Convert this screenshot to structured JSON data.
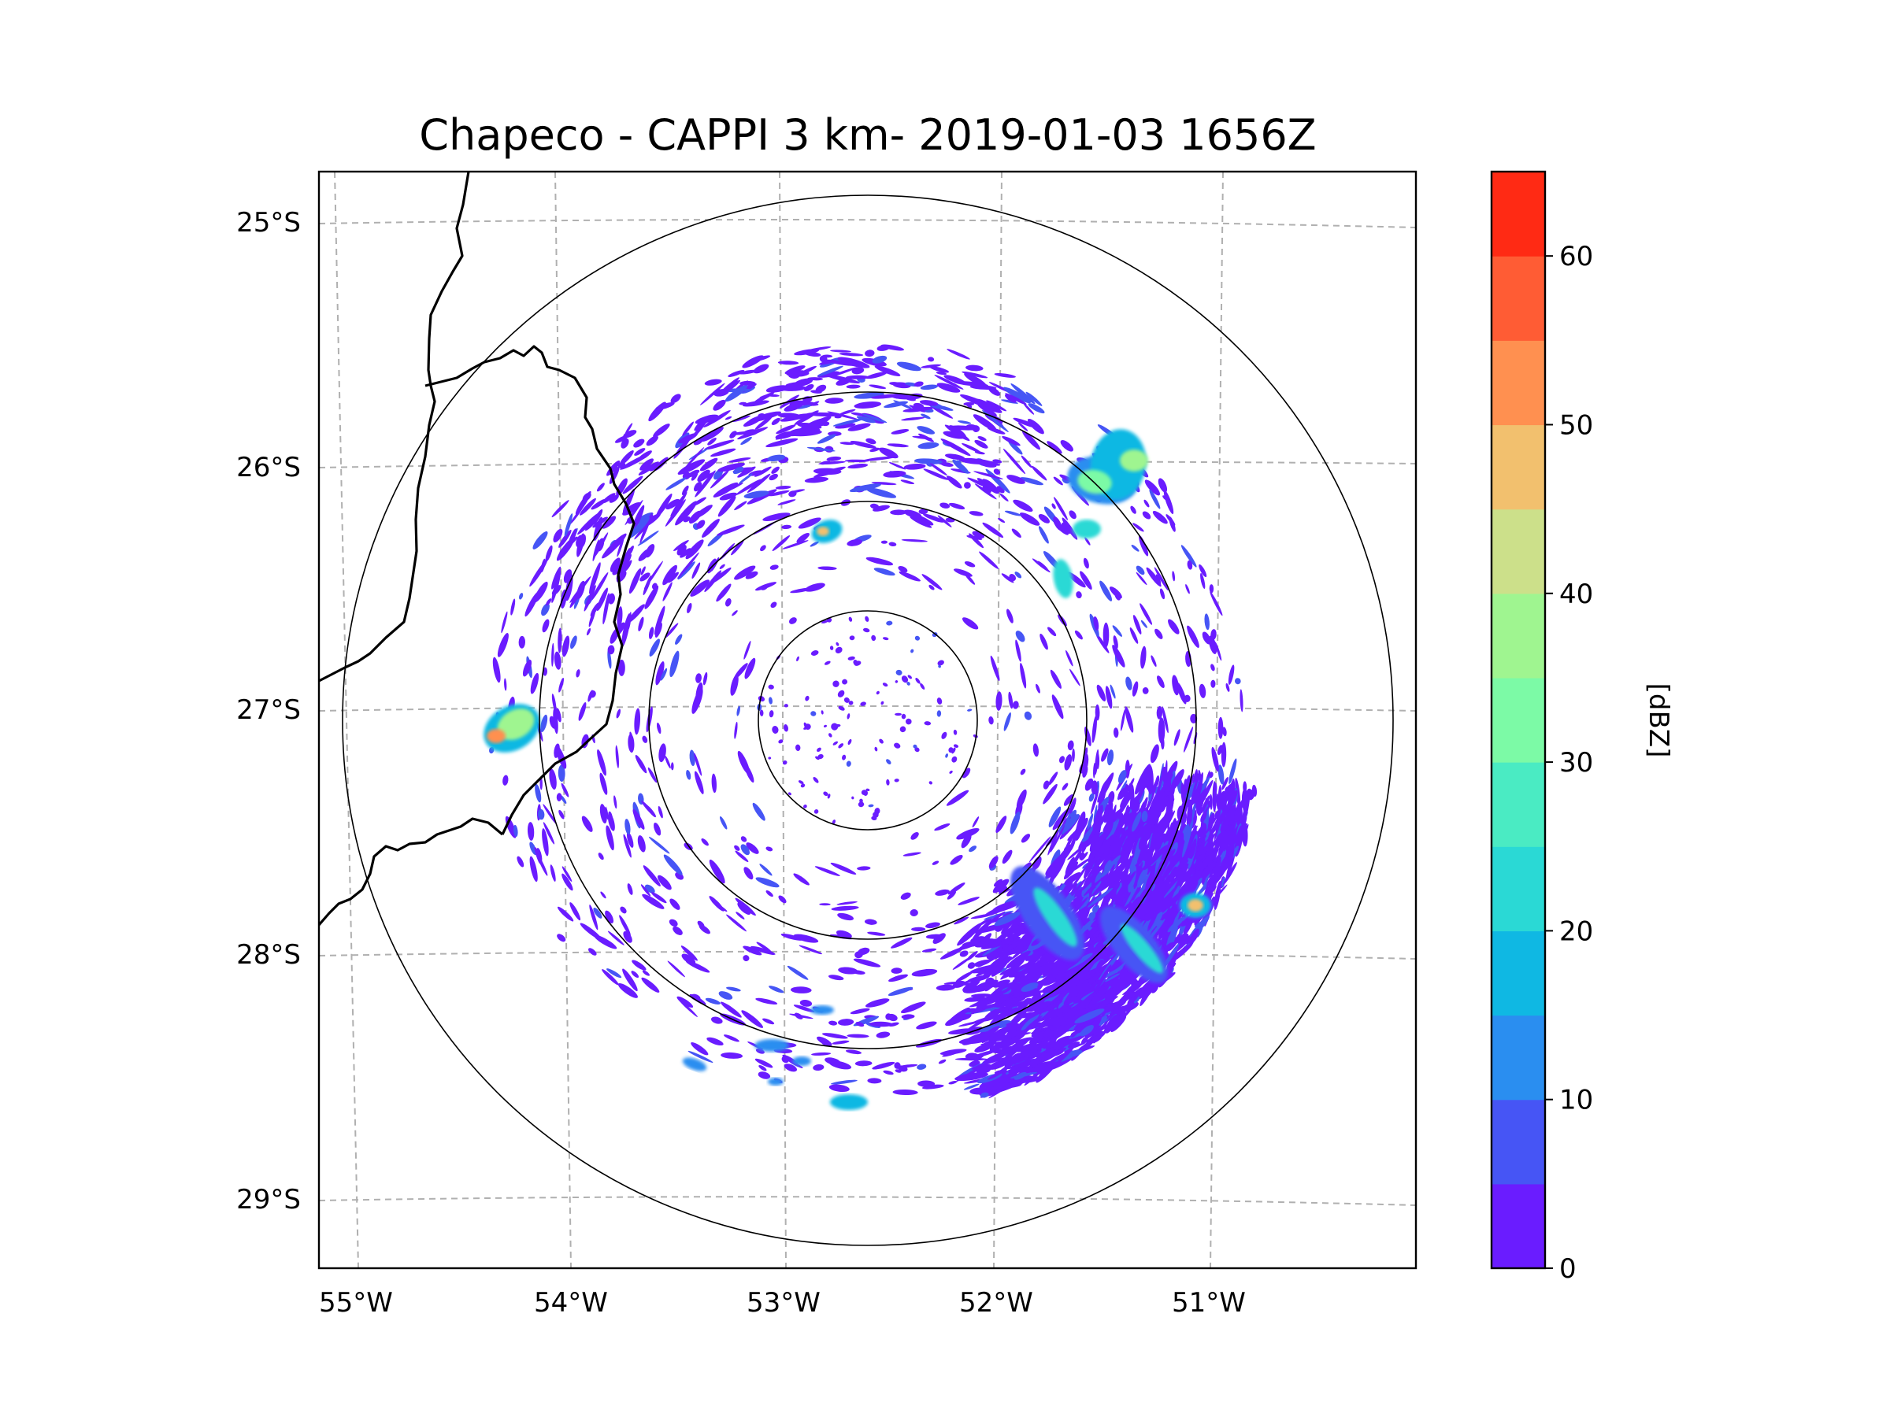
{
  "title": "Chapeco - CAPPI 3 km- 2019-01-03 1656Z",
  "map": {
    "lat_labels": [
      "25°S",
      "26°S",
      "27°S",
      "28°S",
      "29°S"
    ],
    "lon_labels": [
      "55°W",
      "54°W",
      "53°W",
      "52°W",
      "51°W"
    ],
    "range_rings": 4,
    "gridline_color": "#b0b0b0",
    "border_color": "#000000"
  },
  "colorbar": {
    "label": "[dBZ]",
    "tick_labels": [
      "0",
      "10",
      "20",
      "30",
      "40",
      "50",
      "60"
    ],
    "min": 0,
    "max": 65,
    "step": 5,
    "colors": [
      "#6a1cff",
      "#4655f5",
      "#2a8ef0",
      "#0fb8e3",
      "#2ad9d5",
      "#4aebc3",
      "#7cfaa6",
      "#9ff590",
      "#cce08a",
      "#f2c06e",
      "#ff9050",
      "#ff5c34",
      "#ff2a14"
    ]
  },
  "echoes": [
    {
      "name": "west-storm-cell",
      "level": 40
    },
    {
      "name": "northeast-storm-complex",
      "level": 35
    },
    {
      "name": "southeast-squall-band",
      "level": 20
    },
    {
      "name": "southern-cells",
      "level": 15
    }
  ]
}
